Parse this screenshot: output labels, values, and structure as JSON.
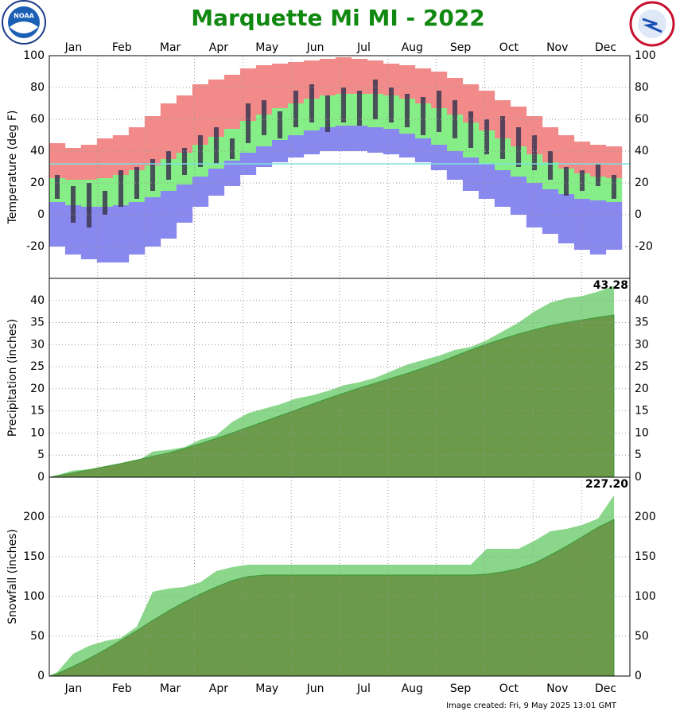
{
  "title": "Marquette Mi MI - 2022",
  "footer": "Image created: Fri, 9 May 2025 13:01 GMT",
  "months": [
    "Jan",
    "Feb",
    "Mar",
    "Apr",
    "May",
    "Jun",
    "Jul",
    "Aug",
    "Sep",
    "Oct",
    "Nov",
    "Dec"
  ],
  "chart_data": [
    {
      "type": "range",
      "y_label": "Temperature (deg F)",
      "x": [
        5,
        15,
        25,
        35,
        45,
        55,
        65,
        75,
        85,
        95,
        105,
        115,
        125,
        135,
        145,
        155,
        165,
        175,
        185,
        195,
        205,
        215,
        225,
        235,
        245,
        255,
        265,
        275,
        285,
        295,
        305,
        315,
        325,
        335,
        345,
        355
      ],
      "xlim": [
        0,
        365
      ],
      "ylim": [
        -40,
        100
      ],
      "yticks": [
        -20,
        0,
        20,
        40,
        60,
        80,
        100
      ],
      "grid": true,
      "reference": 32,
      "reference_color": "#7fe0e0",
      "series": [
        {
          "color": "#f28a8a",
          "values": [
            45,
            42,
            44,
            48,
            50,
            55,
            62,
            70,
            75,
            82,
            85,
            88,
            92,
            94,
            95,
            96,
            97,
            98,
            99,
            98,
            97,
            95,
            94,
            92,
            90,
            86,
            82,
            78,
            72,
            68,
            62,
            55,
            50,
            46,
            44,
            43
          ]
        },
        {
          "color": "#86ee86",
          "values": [
            23,
            22,
            22,
            23,
            25,
            28,
            31,
            35,
            39,
            44,
            49,
            54,
            59,
            63,
            67,
            70,
            73,
            75,
            76,
            76,
            76,
            75,
            73,
            70,
            67,
            63,
            58,
            53,
            48,
            43,
            38,
            33,
            29,
            26,
            24,
            23
          ]
        },
        {
          "color": "#8888ee",
          "values": [
            8,
            6,
            5,
            5,
            6,
            8,
            11,
            15,
            19,
            24,
            29,
            34,
            39,
            43,
            47,
            50,
            53,
            55,
            56,
            56,
            55,
            54,
            51,
            48,
            44,
            40,
            36,
            32,
            28,
            24,
            20,
            16,
            13,
            10,
            9,
            8
          ]
        },
        {
          "values": [
            -20,
            -25,
            -28,
            -30,
            -30,
            -25,
            -20,
            -15,
            -5,
            5,
            12,
            18,
            25,
            30,
            33,
            36,
            38,
            40,
            40,
            40,
            39,
            38,
            36,
            33,
            28,
            22,
            15,
            10,
            5,
            0,
            -8,
            -12,
            -18,
            -22,
            -25,
            -22
          ]
        },
        {
          "color": "#3c3650",
          "values": [
            25,
            18,
            20,
            15,
            28,
            30,
            35,
            40,
            42,
            50,
            55,
            48,
            70,
            72,
            65,
            78,
            82,
            75,
            80,
            78,
            85,
            80,
            76,
            74,
            78,
            72,
            65,
            60,
            62,
            55,
            50,
            40,
            30,
            28,
            32,
            25
          ]
        },
        {
          "values": [
            10,
            -5,
            -8,
            0,
            5,
            10,
            15,
            22,
            25,
            30,
            32,
            35,
            45,
            50,
            48,
            55,
            58,
            52,
            58,
            56,
            60,
            58,
            55,
            50,
            52,
            48,
            42,
            38,
            35,
            30,
            28,
            22,
            12,
            15,
            18,
            10
          ]
        }
      ]
    },
    {
      "type": "area",
      "y_label": "Precipitation (inches)",
      "x": [
        5,
        15,
        25,
        35,
        45,
        55,
        65,
        75,
        85,
        95,
        105,
        115,
        125,
        135,
        145,
        155,
        165,
        175,
        185,
        195,
        205,
        215,
        225,
        235,
        245,
        255,
        265,
        275,
        285,
        295,
        305,
        315,
        325,
        335,
        345,
        355
      ],
      "xlim": [
        0,
        365
      ],
      "ylim": [
        0,
        45
      ],
      "yticks": [
        0,
        5,
        10,
        15,
        20,
        25,
        30,
        35,
        40
      ],
      "grid": true,
      "series": [
        {
          "color": "#8ad68a",
          "values": [
            0.5,
            1.5,
            1.8,
            2.2,
            2.8,
            3.5,
            5.8,
            6.2,
            6.8,
            8.5,
            9.5,
            12.5,
            14.5,
            15.5,
            16.5,
            17.8,
            18.5,
            19.5,
            20.8,
            21.5,
            22.5,
            24.0,
            25.5,
            26.5,
            27.5,
            28.8,
            29.5,
            31.0,
            33.0,
            35.0,
            37.5,
            39.5,
            40.5,
            41.0,
            42.0,
            43.28
          ]
        },
        {
          "color": "#6a9a4a",
          "values": [
            0.3,
            1.0,
            1.7,
            2.4,
            3.1,
            3.9,
            4.7,
            5.5,
            6.5,
            7.6,
            8.8,
            10.0,
            11.3,
            12.6,
            13.9,
            15.2,
            16.5,
            17.8,
            19.0,
            20.2,
            21.3,
            22.4,
            23.5,
            24.7,
            26.0,
            27.4,
            28.8,
            30.1,
            31.3,
            32.4,
            33.4,
            34.3,
            35.0,
            35.6,
            36.2,
            36.7
          ]
        }
      ]
    },
    {
      "type": "area",
      "y_label": "Snowfall (inches)",
      "x": [
        5,
        15,
        25,
        35,
        45,
        55,
        65,
        75,
        85,
        95,
        105,
        115,
        125,
        135,
        145,
        155,
        165,
        175,
        185,
        195,
        205,
        215,
        225,
        235,
        245,
        255,
        265,
        275,
        285,
        295,
        305,
        315,
        325,
        335,
        345,
        355
      ],
      "xlim": [
        0,
        365
      ],
      "ylim": [
        0,
        250
      ],
      "yticks": [
        0,
        50,
        100,
        150,
        200
      ],
      "grid": true,
      "series": [
        {
          "color": "#8ad68a",
          "values": [
            5,
            28,
            38,
            44,
            48,
            62,
            106,
            110,
            112,
            118,
            132,
            137,
            140,
            140,
            140,
            140,
            140,
            140,
            140,
            140,
            140,
            140,
            140,
            140,
            140,
            140,
            140,
            160,
            160,
            160,
            170,
            182,
            185,
            190,
            198,
            227.2
          ],
          "value_labels": [
            null,
            null,
            null,
            null,
            null,
            null,
            null,
            null,
            null,
            null,
            null,
            null,
            null,
            null,
            null,
            null,
            null,
            null,
            null,
            null,
            null,
            null,
            null,
            null,
            null,
            null,
            null,
            null,
            null,
            null,
            null,
            null,
            null,
            null,
            null,
            "227.20"
          ]
        },
        {
          "color": "#6a9a4a",
          "values": [
            3,
            12,
            22,
            33,
            45,
            57,
            70,
            82,
            93,
            103,
            112,
            120,
            125,
            127,
            127,
            127,
            127,
            127,
            127,
            127,
            127,
            127,
            127,
            127,
            127,
            127,
            127,
            128,
            131,
            135,
            142,
            152,
            163,
            175,
            187,
            197
          ]
        }
      ]
    }
  ]
}
